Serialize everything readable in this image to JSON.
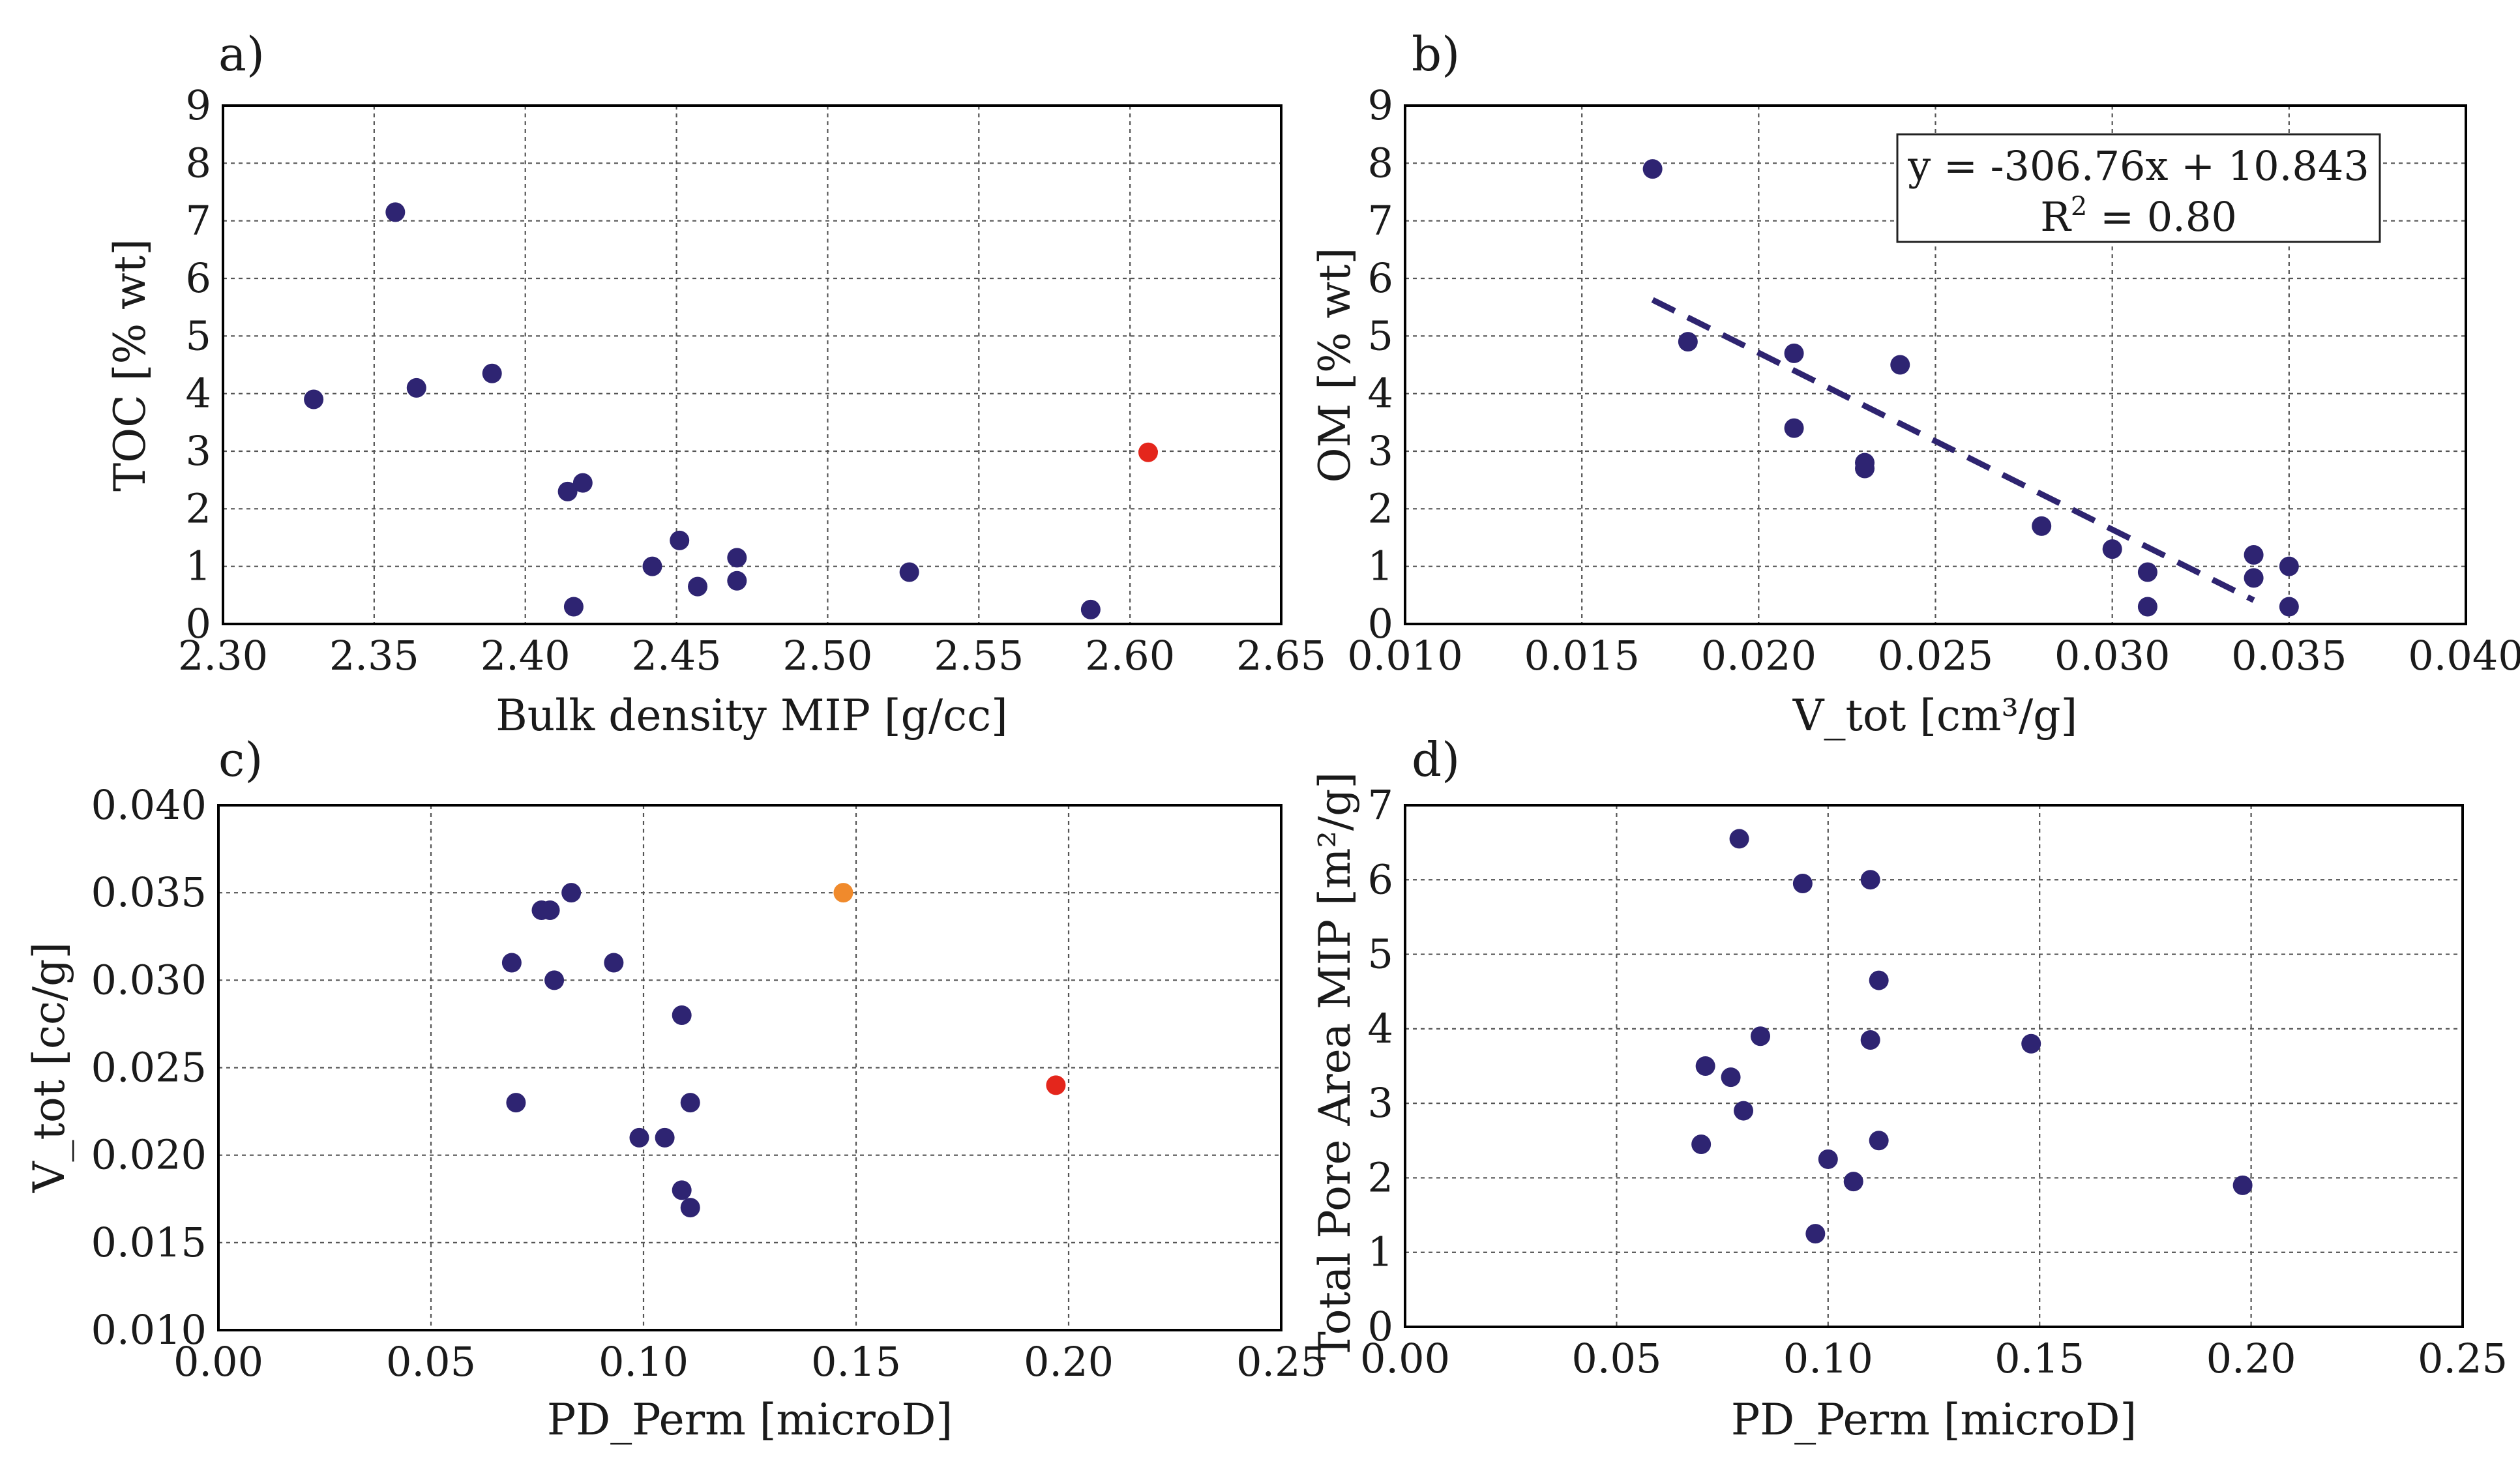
{
  "colors": {
    "point": "#2e2472",
    "highlight_red": "#e4261c",
    "highlight_orange": "#f08a2c"
  },
  "chart_data": [
    {
      "id": "a",
      "type": "scatter",
      "panel_label": "a)",
      "xlabel": "Bulk density MIP [g/cc]",
      "ylabel": "TOC [% wt]",
      "xlim": [
        2.3,
        2.65
      ],
      "ylim": [
        0,
        9
      ],
      "xticks": [
        "2.30",
        "2.35",
        "2.40",
        "2.45",
        "2.50",
        "2.55",
        "2.60",
        "2.65"
      ],
      "yticks": [
        "0",
        "1",
        "2",
        "3",
        "4",
        "5",
        "6",
        "7",
        "8",
        "9"
      ],
      "points": [
        {
          "x": 2.33,
          "y": 3.9
        },
        {
          "x": 2.357,
          "y": 7.15
        },
        {
          "x": 2.364,
          "y": 4.1
        },
        {
          "x": 2.389,
          "y": 4.35
        },
        {
          "x": 2.414,
          "y": 2.3
        },
        {
          "x": 2.419,
          "y": 2.45
        },
        {
          "x": 2.416,
          "y": 0.3
        },
        {
          "x": 2.442,
          "y": 1.0
        },
        {
          "x": 2.451,
          "y": 1.45
        },
        {
          "x": 2.457,
          "y": 0.65
        },
        {
          "x": 2.47,
          "y": 0.75
        },
        {
          "x": 2.47,
          "y": 1.15
        },
        {
          "x": 2.527,
          "y": 0.9
        },
        {
          "x": 2.587,
          "y": 0.25
        },
        {
          "x": 2.606,
          "y": 2.98,
          "color": "red"
        }
      ]
    },
    {
      "id": "b",
      "type": "scatter",
      "panel_label": "b)",
      "xlabel": "V_tot [cm³/g]",
      "ylabel": "OM [% wt]",
      "xlim": [
        0.01,
        0.04
      ],
      "ylim": [
        0,
        9
      ],
      "xticks": [
        "0.010",
        "0.015",
        "0.020",
        "0.025",
        "0.030",
        "0.035",
        "0.040"
      ],
      "yticks": [
        "0",
        "1",
        "2",
        "3",
        "4",
        "5",
        "6",
        "7",
        "8",
        "9"
      ],
      "points": [
        {
          "x": 0.017,
          "y": 7.9
        },
        {
          "x": 0.018,
          "y": 4.9
        },
        {
          "x": 0.021,
          "y": 4.7
        },
        {
          "x": 0.021,
          "y": 3.4
        },
        {
          "x": 0.023,
          "y": 2.8
        },
        {
          "x": 0.023,
          "y": 2.7
        },
        {
          "x": 0.024,
          "y": 4.5
        },
        {
          "x": 0.028,
          "y": 1.7
        },
        {
          "x": 0.03,
          "y": 1.3
        },
        {
          "x": 0.031,
          "y": 0.9
        },
        {
          "x": 0.031,
          "y": 0.3
        },
        {
          "x": 0.034,
          "y": 1.2
        },
        {
          "x": 0.034,
          "y": 0.8
        },
        {
          "x": 0.035,
          "y": 1.0
        },
        {
          "x": 0.035,
          "y": 0.3
        }
      ],
      "trendline": {
        "slope": -306.76,
        "intercept": 10.843,
        "x_range": [
          0.017,
          0.034
        ]
      },
      "equation": "y = -306.76x + 10.843",
      "r2_label": "R",
      "r2_sup": "2",
      "r2_value": " = 0.80"
    },
    {
      "id": "c",
      "type": "scatter",
      "panel_label": "c)",
      "xlabel": "PD_Perm [microD]",
      "ylabel": "V_tot [cc/g]",
      "xlim": [
        0.0,
        0.25
      ],
      "ylim": [
        0.01,
        0.04
      ],
      "xticks": [
        "0.00",
        "0.05",
        "0.10",
        "0.15",
        "0.20",
        "0.25"
      ],
      "yticks": [
        "0.010",
        "0.015",
        "0.020",
        "0.025",
        "0.030",
        "0.035",
        "0.040"
      ],
      "points": [
        {
          "x": 0.069,
          "y": 0.031
        },
        {
          "x": 0.07,
          "y": 0.023
        },
        {
          "x": 0.076,
          "y": 0.034
        },
        {
          "x": 0.078,
          "y": 0.034
        },
        {
          "x": 0.079,
          "y": 0.03
        },
        {
          "x": 0.083,
          "y": 0.035
        },
        {
          "x": 0.093,
          "y": 0.031
        },
        {
          "x": 0.099,
          "y": 0.021
        },
        {
          "x": 0.105,
          "y": 0.021
        },
        {
          "x": 0.109,
          "y": 0.028
        },
        {
          "x": 0.109,
          "y": 0.018
        },
        {
          "x": 0.111,
          "y": 0.017
        },
        {
          "x": 0.111,
          "y": 0.023
        },
        {
          "x": 0.147,
          "y": 0.035,
          "color": "orange"
        },
        {
          "x": 0.197,
          "y": 0.024,
          "color": "red"
        }
      ]
    },
    {
      "id": "d",
      "type": "scatter",
      "panel_label": "d)",
      "xlabel": "PD_Perm [microD]",
      "ylabel": "Total Pore Area MIP [m²/g]",
      "xlim": [
        0.0,
        0.25
      ],
      "ylim": [
        0,
        7
      ],
      "xticks": [
        "0.00",
        "0.05",
        "0.10",
        "0.15",
        "0.20",
        "0.25"
      ],
      "yticks": [
        "0",
        "1",
        "2",
        "3",
        "4",
        "5",
        "6",
        "7"
      ],
      "points": [
        {
          "x": 0.079,
          "y": 6.55
        },
        {
          "x": 0.094,
          "y": 5.95
        },
        {
          "x": 0.11,
          "y": 6.0
        },
        {
          "x": 0.112,
          "y": 4.65
        },
        {
          "x": 0.084,
          "y": 3.9
        },
        {
          "x": 0.11,
          "y": 3.85
        },
        {
          "x": 0.148,
          "y": 3.8
        },
        {
          "x": 0.071,
          "y": 3.5
        },
        {
          "x": 0.077,
          "y": 3.35
        },
        {
          "x": 0.08,
          "y": 2.9
        },
        {
          "x": 0.07,
          "y": 2.45
        },
        {
          "x": 0.1,
          "y": 2.25
        },
        {
          "x": 0.112,
          "y": 2.5
        },
        {
          "x": 0.106,
          "y": 1.95
        },
        {
          "x": 0.198,
          "y": 1.9
        },
        {
          "x": 0.097,
          "y": 1.25
        }
      ]
    }
  ]
}
